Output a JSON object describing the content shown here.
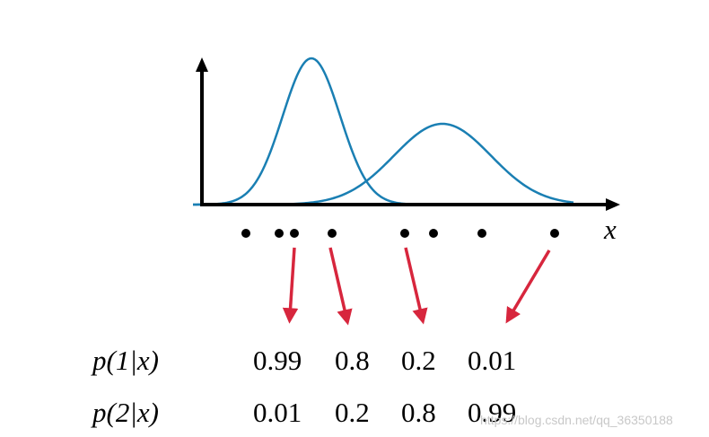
{
  "axis_label": "x",
  "table": {
    "rows": [
      {
        "label": "p(1|x)",
        "values": [
          "0.99",
          "0.8",
          "0.2",
          "0.01"
        ]
      },
      {
        "label": "p(2|x)",
        "values": [
          "0.01",
          "0.2",
          "0.8",
          "0.99"
        ]
      }
    ]
  },
  "watermark": "https://blog.csdn.net/qq_36350188"
}
